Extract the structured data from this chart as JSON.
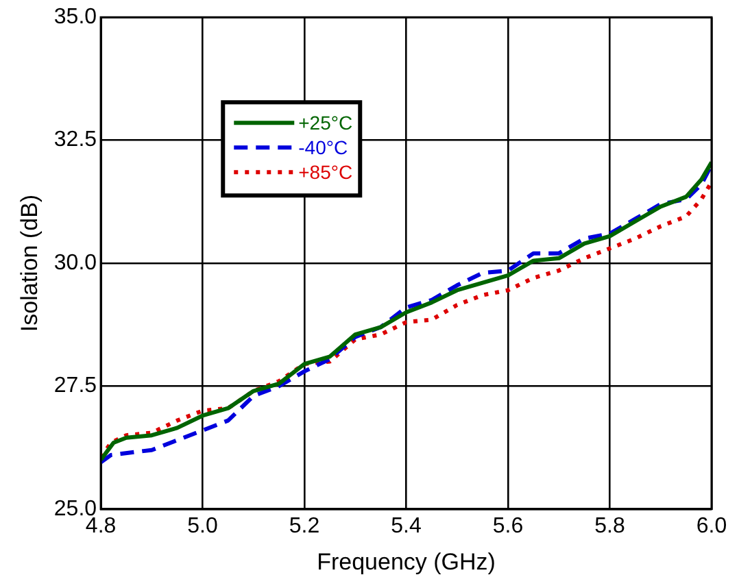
{
  "chart_data": {
    "type": "line",
    "xlabel": "Frequency (GHz)",
    "ylabel": "Isolation (dB)",
    "xlim": [
      4.8,
      6.0
    ],
    "xticks": [
      {
        "value": 4.8,
        "label": "4.8"
      },
      {
        "value": 5.0,
        "label": "5.0"
      },
      {
        "value": 5.2,
        "label": "5.2"
      },
      {
        "value": 5.4,
        "label": "5.4"
      },
      {
        "value": 5.6,
        "label": "5.6"
      },
      {
        "value": 5.8,
        "label": "5.8"
      },
      {
        "value": 6.0,
        "label": "6.0"
      }
    ],
    "ylim": [
      25,
      35
    ],
    "yticks": [
      {
        "value": 25,
        "label": "25.0"
      },
      {
        "value": 27.5,
        "label": "27.5"
      },
      {
        "value": 30,
        "label": "30.0"
      },
      {
        "value": 32.5,
        "label": "32.5"
      },
      {
        "value": 35,
        "label": "35.0"
      }
    ],
    "grid": true,
    "legend": "top left",
    "marker": "none",
    "series": [
      {
        "name": "+25°C",
        "color": "#006400",
        "line_style": "solid",
        "x": [
          4.8,
          4.825,
          4.85,
          4.9,
          4.95,
          5.0,
          5.05,
          5.1,
          5.15,
          5.2,
          5.25,
          5.3,
          5.35,
          5.4,
          5.45,
          5.5,
          5.55,
          5.6,
          5.65,
          5.7,
          5.75,
          5.8,
          5.85,
          5.9,
          5.95,
          5.98,
          6.0
        ],
        "values": [
          26.0,
          26.35,
          26.45,
          26.5,
          26.65,
          26.9,
          27.05,
          27.4,
          27.55,
          27.95,
          28.1,
          28.55,
          28.7,
          29.0,
          29.2,
          29.45,
          29.6,
          29.75,
          30.05,
          30.1,
          30.4,
          30.55,
          30.85,
          31.15,
          31.35,
          31.7,
          32.05
        ]
      },
      {
        "name": "-40°C",
        "color": "#0000dd",
        "line_style": "dashed",
        "x": [
          4.8,
          4.82,
          4.9,
          4.95,
          5.0,
          5.05,
          5.1,
          5.15,
          5.2,
          5.25,
          5.3,
          5.35,
          5.4,
          5.45,
          5.5,
          5.55,
          5.6,
          5.65,
          5.7,
          5.75,
          5.8,
          5.85,
          5.9,
          5.95,
          5.98,
          6.0
        ],
        "values": [
          25.95,
          26.1,
          26.2,
          26.4,
          26.6,
          26.8,
          27.3,
          27.5,
          27.8,
          28.05,
          28.5,
          28.7,
          29.1,
          29.25,
          29.55,
          29.8,
          29.85,
          30.2,
          30.2,
          30.5,
          30.6,
          30.9,
          31.2,
          31.3,
          31.6,
          32.0
        ]
      },
      {
        "name": "+85°C",
        "color": "#dd0000",
        "line_style": "dotted",
        "x": [
          4.8,
          4.82,
          4.85,
          4.9,
          4.95,
          5.0,
          5.05,
          5.1,
          5.15,
          5.2,
          5.25,
          5.3,
          5.35,
          5.4,
          5.45,
          5.5,
          5.55,
          5.6,
          5.65,
          5.7,
          5.75,
          5.8,
          5.85,
          5.9,
          5.95,
          5.98,
          6.0
        ],
        "values": [
          26.05,
          26.35,
          26.5,
          26.55,
          26.8,
          27.0,
          27.05,
          27.4,
          27.6,
          27.95,
          28.0,
          28.45,
          28.55,
          28.8,
          28.85,
          29.15,
          29.35,
          29.45,
          29.7,
          29.85,
          30.1,
          30.3,
          30.5,
          30.75,
          30.95,
          31.3,
          31.65
        ]
      }
    ]
  }
}
